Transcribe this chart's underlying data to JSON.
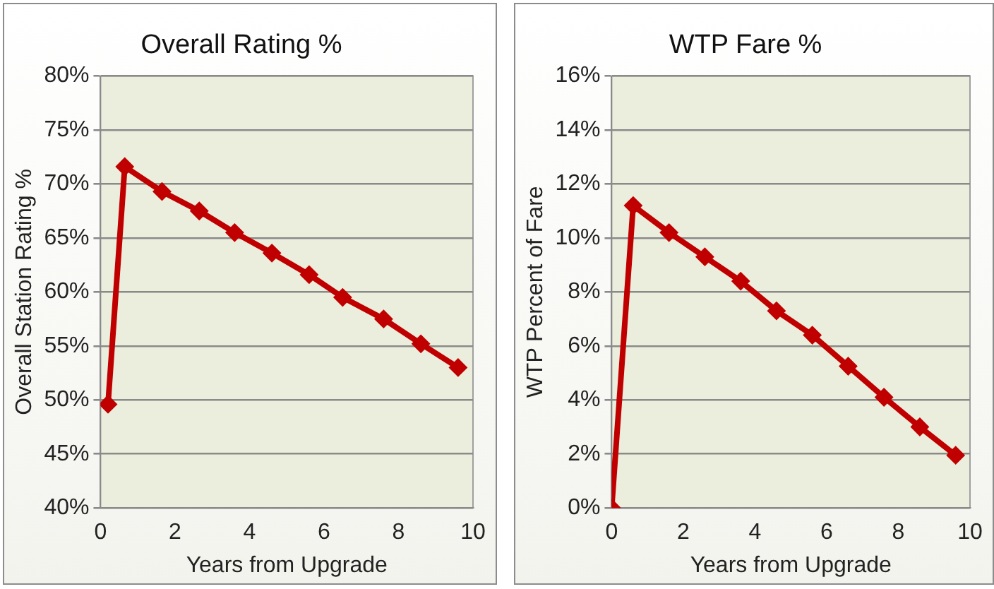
{
  "chart_data": [
    {
      "type": "line",
      "title": "Overall Rating %",
      "xlabel": "Years from Upgrade",
      "ylabel": "Overall Station Rating %",
      "x": [
        0.2,
        0.65,
        1.65,
        2.65,
        3.6,
        4.6,
        5.6,
        6.5,
        7.6,
        8.6,
        9.6
      ],
      "series": [
        {
          "color": "#c00000",
          "values": [
            49.6,
            71.6,
            69.3,
            67.5,
            65.5,
            63.6,
            61.6,
            59.5,
            57.5,
            55.2,
            53.0
          ]
        }
      ],
      "xlim": [
        0,
        10
      ],
      "xticks": [
        0,
        2,
        4,
        6,
        8,
        10
      ],
      "ylim": [
        40,
        80
      ],
      "yticks": [
        {
          "value": 40,
          "label": "40%"
        },
        {
          "value": 45,
          "label": "45%"
        },
        {
          "value": 50,
          "label": "50%"
        },
        {
          "value": 55,
          "label": "55%"
        },
        {
          "value": 60,
          "label": "60%"
        },
        {
          "value": 65,
          "label": "65%"
        },
        {
          "value": 70,
          "label": "70%"
        },
        {
          "value": 75,
          "label": "75%"
        },
        {
          "value": 80,
          "label": "80%"
        }
      ],
      "grid": "y",
      "marker": "diamond"
    },
    {
      "type": "line",
      "title": "WTP Fare %",
      "xlabel": "Years from Upgrade",
      "ylabel": "WTP Percent of Fare",
      "x": [
        0,
        0.6,
        1.6,
        2.6,
        3.6,
        4.6,
        5.6,
        6.6,
        7.6,
        8.6,
        9.6
      ],
      "series": [
        {
          "color": "#c00000",
          "values": [
            0,
            11.2,
            10.2,
            9.3,
            8.4,
            7.3,
            6.4,
            5.25,
            4.1,
            3.0,
            1.95
          ]
        }
      ],
      "xlim": [
        0,
        10
      ],
      "xticks": [
        0,
        2,
        4,
        6,
        8,
        10
      ],
      "ylim": [
        0,
        16
      ],
      "yticks": [
        {
          "value": 0,
          "label": "0%"
        },
        {
          "value": 2,
          "label": "2%"
        },
        {
          "value": 4,
          "label": "4%"
        },
        {
          "value": 6,
          "label": "6%"
        },
        {
          "value": 8,
          "label": "8%"
        },
        {
          "value": 10,
          "label": "10%"
        },
        {
          "value": 12,
          "label": "12%"
        },
        {
          "value": 14,
          "label": "14%"
        },
        {
          "value": 16,
          "label": "16%"
        }
      ],
      "grid": "y",
      "marker": "diamond"
    }
  ]
}
